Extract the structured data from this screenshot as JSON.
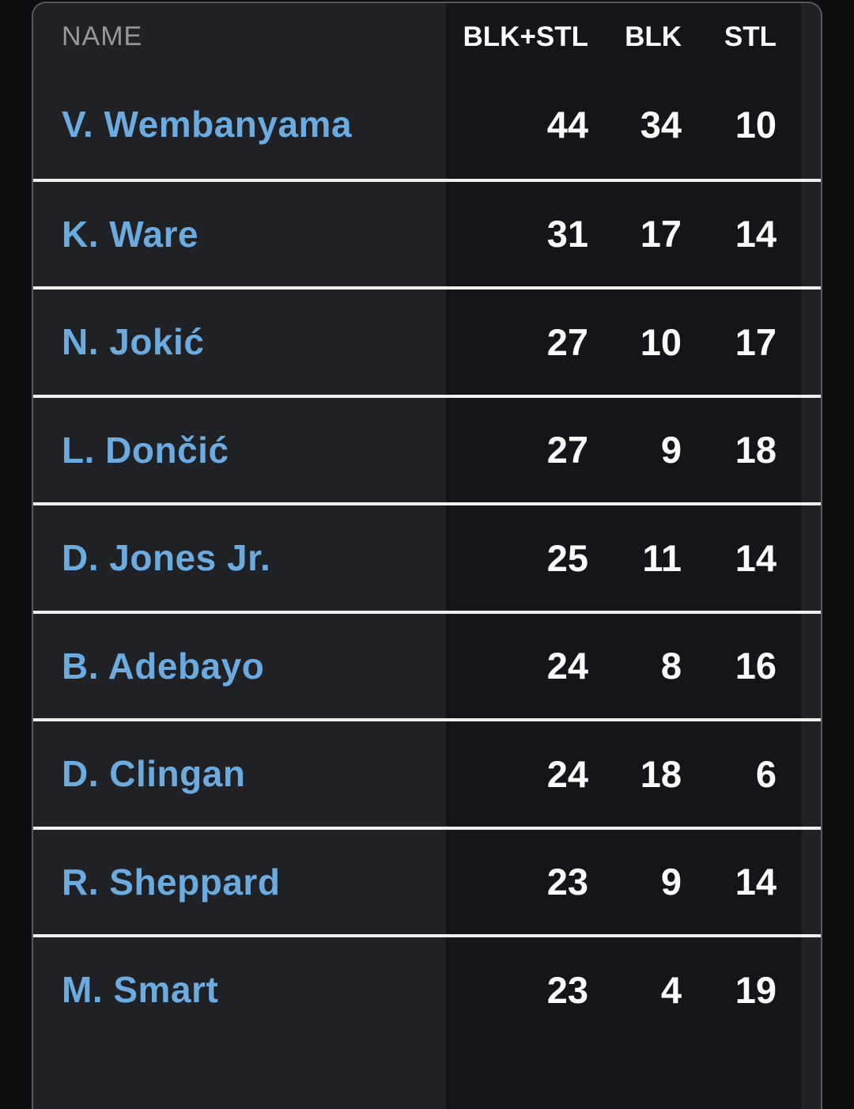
{
  "table": {
    "columns": [
      {
        "label": "NAME"
      },
      {
        "label": "BLK+STL"
      },
      {
        "label": "BLK"
      },
      {
        "label": "STL"
      }
    ],
    "rows": [
      {
        "name": "V. Wembanyama",
        "blk_stl": "44",
        "blk": "34",
        "stl": "10"
      },
      {
        "name": "K. Ware",
        "blk_stl": "31",
        "blk": "17",
        "stl": "14"
      },
      {
        "name": "N. Jokić",
        "blk_stl": "27",
        "blk": "10",
        "stl": "17"
      },
      {
        "name": "L. Dončić",
        "blk_stl": "27",
        "blk": "9",
        "stl": "18"
      },
      {
        "name": "D. Jones Jr.",
        "blk_stl": "25",
        "blk": "11",
        "stl": "14"
      },
      {
        "name": "B. Adebayo",
        "blk_stl": "24",
        "blk": "8",
        "stl": "16"
      },
      {
        "name": "D. Clingan",
        "blk_stl": "24",
        "blk": "18",
        "stl": "6"
      },
      {
        "name": "R. Sheppard",
        "blk_stl": "23",
        "blk": "9",
        "stl": "14"
      },
      {
        "name": "M. Smart",
        "blk_stl": "23",
        "blk": "4",
        "stl": "19"
      }
    ]
  },
  "colors": {
    "page-bg": "#0c0d0e",
    "card-bg": "#202124",
    "stats-bg": "#131519",
    "card-border": "#55575b",
    "separator": "#f0eff0",
    "name-blue": "#6babdf",
    "stat-white": "#fbfbfb",
    "header-gray": "#96989c"
  }
}
